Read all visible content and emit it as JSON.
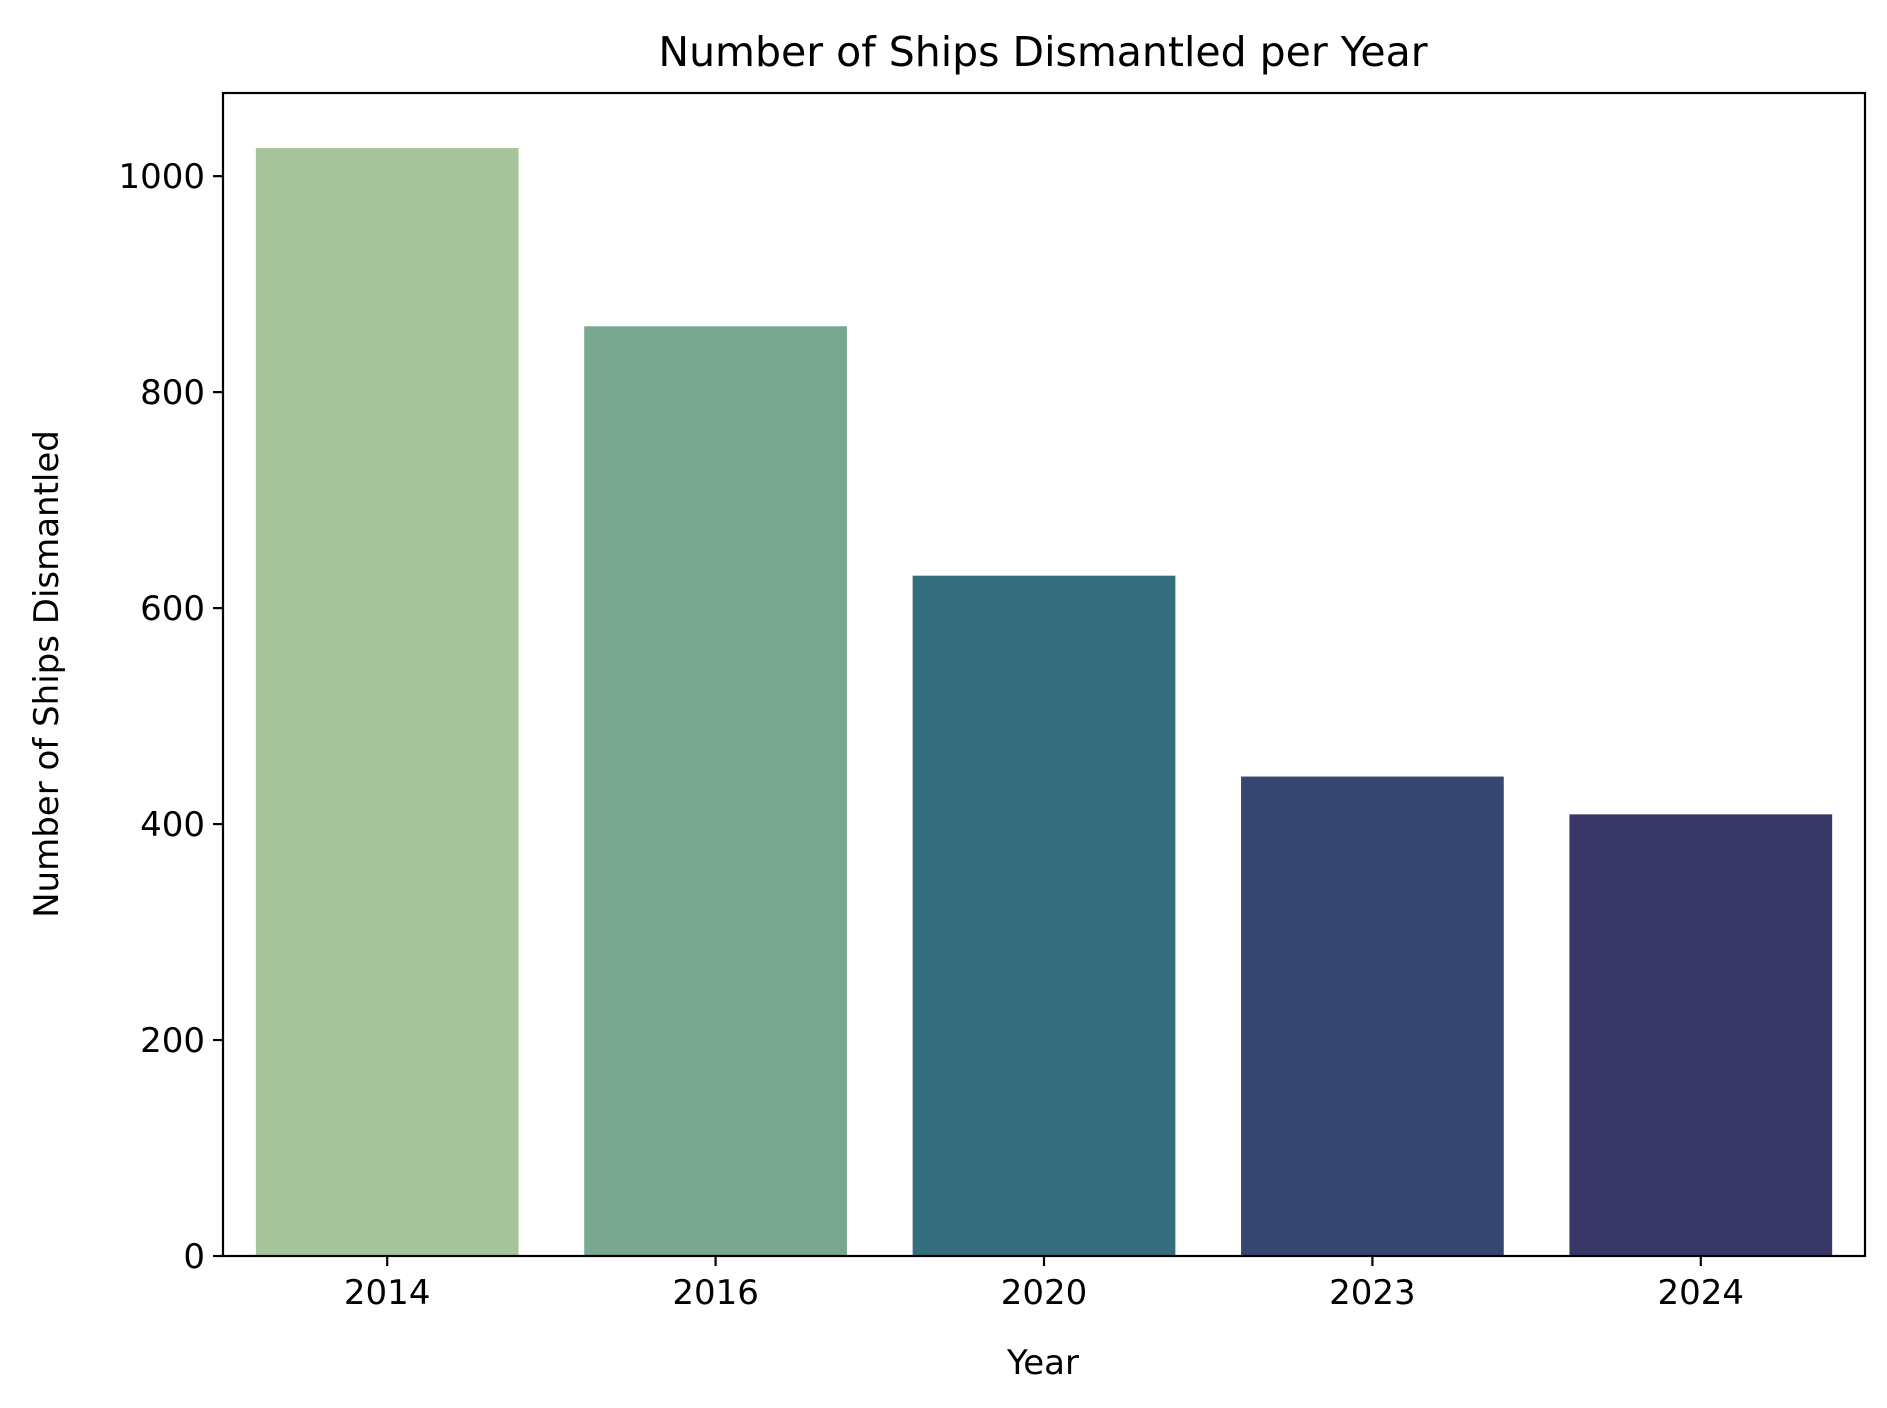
{
  "chart_data": {
    "type": "bar",
    "title": "Number of Ships Dismantled per Year",
    "xlabel": "Year",
    "ylabel": "Number of Ships Dismantled",
    "categories": [
      "2014",
      "2016",
      "2020",
      "2023",
      "2024"
    ],
    "values": [
      1026,
      861,
      630,
      444,
      409
    ],
    "colors": [
      "#a7c59a",
      "#79a890",
      "#356e7d",
      "#35476f",
      "#393668"
    ],
    "ylim": [
      0,
      1077
    ],
    "yticks": [
      0,
      200,
      400,
      600,
      800,
      1000
    ],
    "grid": false,
    "legend": "none"
  }
}
